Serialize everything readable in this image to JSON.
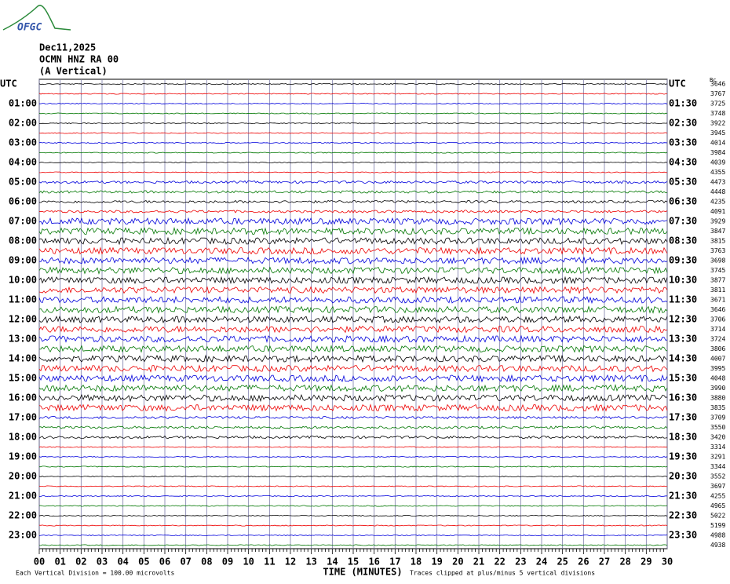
{
  "header": {
    "logo": "OFGC",
    "date": "Dec11,2025",
    "station": "OCMN HNZ RA 00",
    "component": "(A Vertical)"
  },
  "left_labels": [
    "UTC",
    "01:00",
    "02:00",
    "03:00",
    "04:00",
    "05:00",
    "06:00",
    "07:00",
    "08:00",
    "09:00",
    "10:00",
    "11:00",
    "12:00",
    "13:00",
    "14:00",
    "15:00",
    "16:00",
    "17:00",
    "18:00",
    "19:00",
    "20:00",
    "21:00",
    "22:00",
    "23:00"
  ],
  "right_labels": [
    "UTC",
    "01:30",
    "02:30",
    "03:30",
    "04:30",
    "05:30",
    "06:30",
    "07:30",
    "08:30",
    "09:30",
    "10:30",
    "11:30",
    "12:30",
    "13:30",
    "14:30",
    "15:30",
    "16:30",
    "17:30",
    "18:30",
    "19:30",
    "20:30",
    "21:30",
    "22:30",
    "23:30"
  ],
  "right_corner": "Bc",
  "trace_values": [
    3646,
    3767,
    3725,
    3748,
    3922,
    3945,
    4014,
    3984,
    4039,
    4355,
    4473,
    4448,
    4235,
    4091,
    3929,
    3847,
    3815,
    3763,
    3698,
    3745,
    3877,
    3811,
    3671,
    3646,
    3706,
    3714,
    3724,
    3806,
    4007,
    3995,
    4048,
    3990,
    3880,
    3835,
    3709,
    3550,
    3420,
    3314,
    3291,
    3344,
    3552,
    3697,
    4255,
    4965,
    5022,
    5199,
    4988,
    4938
  ],
  "x_labels": [
    "00",
    "01",
    "02",
    "03",
    "04",
    "05",
    "06",
    "07",
    "08",
    "09",
    "10",
    "11",
    "12",
    "13",
    "14",
    "15",
    "16",
    "17",
    "18",
    "19",
    "20",
    "21",
    "22",
    "23",
    "24",
    "25",
    "26",
    "27",
    "28",
    "29",
    "30"
  ],
  "footer": {
    "scale_note": "Each Vertical Division =  100.00 microvolts",
    "axis_title": "TIME (MINUTES)",
    "clip_note": "Traces clipped at plus/minus 5 vertical divisions"
  }
}
